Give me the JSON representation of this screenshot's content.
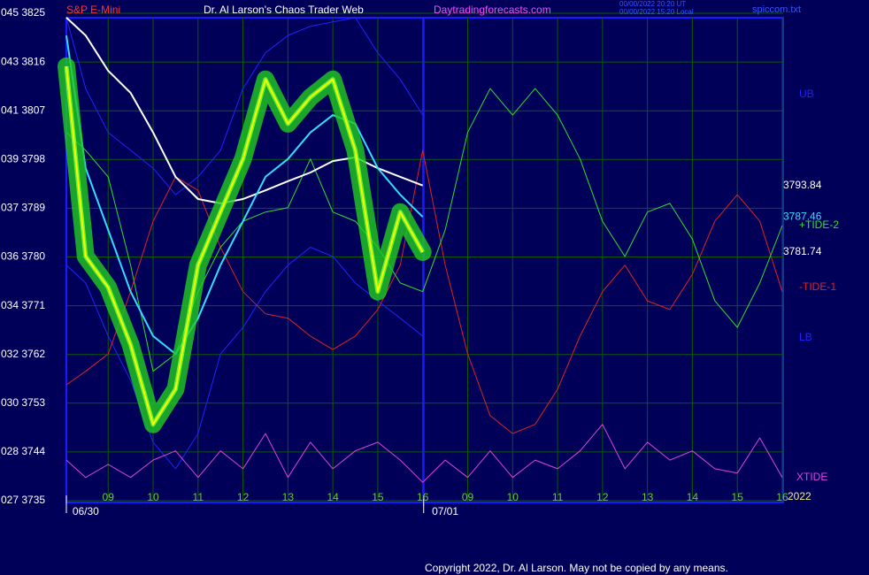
{
  "chart_data": {
    "type": "line",
    "title": "S&P E-Mini",
    "subtitle": "Dr. Al Larson's Chaos Trader Web",
    "site": "Daytradingforecasts.com",
    "stamp": [
      "00/00/2022 20:20 UT",
      "00/00/2022 15:20 Local"
    ],
    "file": "spiccom.txt",
    "copyright": "Copyright 2022, Dr. Al Larson. May not be copied by any means.",
    "dates": [
      {
        "value": 8.5,
        "label": "06/30"
      },
      {
        "value": 16.5,
        "label": "07/01"
      }
    ],
    "year": "2022",
    "grid": true,
    "background": "#000058",
    "grid_color": "#0a5a0a",
    "frame_color": "#1a1aff",
    "ylim": [
      3735,
      3825
    ],
    "yticks": [
      {
        "value": 3825,
        "label": "045 3825"
      },
      {
        "value": 3816,
        "label": "043 3816"
      },
      {
        "value": 3807,
        "label": "041 3807"
      },
      {
        "value": 3798,
        "label": "039 3798"
      },
      {
        "value": 3789,
        "label": "037 3789"
      },
      {
        "value": 3780,
        "label": "036 3780"
      },
      {
        "value": 3771,
        "label": "034 3771"
      },
      {
        "value": 3762,
        "label": "032 3762"
      },
      {
        "value": 3753,
        "label": "030 3753"
      },
      {
        "value": 3744,
        "label": "028 3744"
      },
      {
        "value": 3735,
        "label": "027 3735"
      }
    ],
    "xlim": [
      8.07,
      24.02
    ],
    "xticks": [
      {
        "value": 9,
        "label": "09"
      },
      10,
      11,
      12,
      13,
      14,
      15,
      16,
      {
        "value": 17,
        "label": "09"
      },
      {
        "value": 18,
        "label": "10"
      },
      {
        "value": 19,
        "label": "11"
      },
      {
        "value": 20,
        "label": "12"
      },
      {
        "value": 21,
        "label": "13"
      },
      {
        "value": 22,
        "label": "14"
      },
      {
        "value": 23,
        "label": "15"
      },
      {
        "value": 24,
        "label": "16"
      }
    ],
    "day_break": 16.02,
    "x": [
      8.07,
      8.5,
      9,
      9.5,
      10,
      10.5,
      11,
      11.5,
      12,
      12.5,
      13,
      13.5,
      14,
      14.5,
      15,
      15.5,
      16,
      16.5,
      17,
      17.5,
      18,
      18.5,
      19,
      19.5,
      20,
      20.5,
      21,
      21.5,
      22,
      22.5,
      23,
      23.5,
      24
    ],
    "series": [
      {
        "name": "UB",
        "color": "#2222ff",
        "values": [
          3824.2,
          3811.1,
          3803.0,
          3799.7,
          3796.4,
          3791.5,
          3794.8,
          3799.7,
          3811.1,
          3817.7,
          3820.9,
          3822.6,
          3823.4,
          3824.2,
          3817.7,
          3812.8,
          3806.2,
          null,
          null,
          null,
          null,
          null,
          null,
          null,
          null,
          null,
          null,
          null,
          null,
          null,
          null,
          null,
          null
        ]
      },
      {
        "name": "LB",
        "color": "#2222ff",
        "values": [
          3778.5,
          3775.2,
          3765.4,
          3757.2,
          3745.8,
          3740.9,
          3747.4,
          3762.1,
          3767.0,
          3773.6,
          3778.5,
          3781.8,
          3780.1,
          3775.2,
          3771.9,
          3768.7,
          3765.4,
          null,
          null,
          null,
          null,
          null,
          null,
          null,
          null,
          null,
          null,
          null,
          null,
          null,
          null,
          null,
          null
        ]
      },
      {
        "name": "XTIDE",
        "color": "#dd44dd",
        "values": [
          3742.5,
          3739.3,
          3741.7,
          3739.3,
          3742.5,
          3744.2,
          3739.3,
          3744.2,
          3740.9,
          3747.4,
          3739.3,
          3745.8,
          3740.9,
          3744.2,
          3745.8,
          3742.5,
          3738.4,
          3742.5,
          3739.3,
          3744.2,
          3739.3,
          3742.5,
          3740.9,
          3744.2,
          3749.1,
          3740.9,
          3745.8,
          3742.5,
          3744.2,
          3740.9,
          3740.1,
          3746.6,
          3739.3
        ]
      },
      {
        "name": "-TIDE-1",
        "color": "#dd2222",
        "values": [
          3756.4,
          3758.9,
          3762.1,
          3773.6,
          3786.6,
          3794.8,
          3792.3,
          3781.8,
          3773.6,
          3769.5,
          3768.7,
          3765.4,
          3762.9,
          3765.4,
          3770.3,
          3778.5,
          3799.7,
          3778.5,
          3762.1,
          3750.7,
          3747.4,
          3749.1,
          3755.6,
          3765.4,
          3773.6,
          3778.5,
          3771.9,
          3770.3,
          3776.8,
          3786.6,
          3791.5,
          3786.6,
          3773.6
        ]
      },
      {
        "name": "+TIDE-2",
        "color": "#33dd33",
        "values": [
          3803.0,
          3799.7,
          3794.8,
          3778.5,
          3758.9,
          3762.1,
          3773.6,
          3781.8,
          3786.6,
          3788.3,
          3789.1,
          3798.1,
          3788.3,
          3786.6,
          3781.8,
          3775.2,
          3773.6,
          3785.0,
          3803.0,
          3811.1,
          3806.2,
          3811.1,
          3806.2,
          3798.1,
          3786.6,
          3780.1,
          3788.3,
          3789.9,
          3783.3,
          3771.9,
          3767.0,
          3775.2,
          3785.8
        ]
      },
      {
        "color": "#ffffff",
        "end_label": "3793.84",
        "values": [
          3824.2,
          3820.9,
          3814.4,
          3810.3,
          3803.0,
          3794.8,
          3790.7,
          3789.9,
          3790.7,
          3792.3,
          3794.0,
          3795.6,
          3797.7,
          3798.4,
          3796.4,
          3794.8,
          3793.2,
          null,
          null,
          null,
          null,
          null,
          null,
          null,
          null,
          null,
          null,
          null,
          null,
          null,
          null,
          null,
          null
        ]
      },
      {
        "color": "#33ddff",
        "end_label": "3787.46",
        "values": [
          3820.9,
          3796.4,
          3785.0,
          3773.6,
          3765.4,
          3762.1,
          3768.7,
          3778.5,
          3786.6,
          3794.8,
          3798.1,
          3803.0,
          3806.2,
          3804.6,
          3796.4,
          3791.5,
          3787.4,
          null,
          null,
          null,
          null,
          null,
          null,
          null,
          null,
          null,
          null,
          null,
          null,
          null,
          null,
          null,
          null
        ]
      },
      {
        "color": "#ffff00",
        "glow": "#22cc22",
        "end_label": "3781.74",
        "values": [
          3815.2,
          3780.1,
          3774.4,
          3763.8,
          3749.1,
          3755.6,
          3778.5,
          3788.3,
          3798.1,
          3812.8,
          3804.6,
          3809.5,
          3812.8,
          3799.7,
          3773.6,
          3788.3,
          3780.9,
          null,
          null,
          null,
          null,
          null,
          null,
          null,
          null,
          null,
          null,
          null,
          null,
          null,
          null,
          null,
          null
        ]
      }
    ]
  }
}
